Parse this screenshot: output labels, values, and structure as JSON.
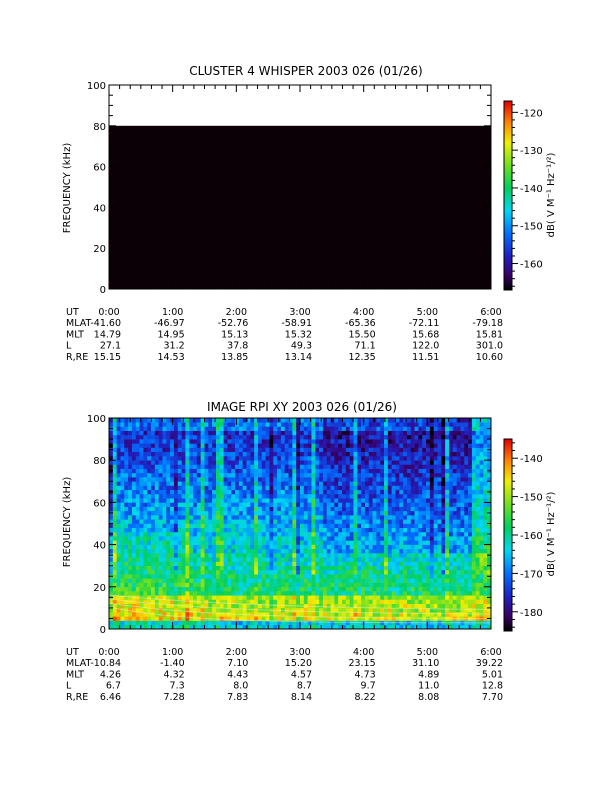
{
  "chart_data": [
    {
      "type": "heatmap",
      "title": "CLUSTER 4 WHISPER 2003 026 (01/26)",
      "ylabel": "FREQUENCY (kHz)",
      "ylim": [
        0,
        100
      ],
      "yticks": [
        "0",
        "20",
        "40",
        "60",
        "80",
        "100"
      ],
      "data_top_khz": 80,
      "fill_color": "#0a0005",
      "colorbar": {
        "label": "dB( V M⁻¹ Hz⁻¹/²)",
        "range": [
          -167,
          -117
        ],
        "ticks": [
          "-120",
          "-130",
          "-140",
          "-150",
          "-160"
        ],
        "tick_values": [
          -120,
          -130,
          -140,
          -150,
          -160
        ]
      },
      "ephemeris": {
        "labels": [
          "UT",
          "MLAT",
          "MLT",
          "L",
          "R,RE"
        ],
        "times": [
          "0:00",
          "1:00",
          "2:00",
          "3:00",
          "4:00",
          "5:00",
          "6:00"
        ],
        "rows": [
          [
            "-41.60",
            "-46.97",
            "-52.76",
            "-58.91",
            "-65.36",
            "-72.11",
            "-79.18"
          ],
          [
            "14.79",
            "14.95",
            "15.13",
            "15.32",
            "15.50",
            "15.68",
            "15.81"
          ],
          [
            "27.1",
            "31.2",
            "37.8",
            "49.3",
            "71.1",
            "122.0",
            "301.0"
          ],
          [
            "15.15",
            "14.53",
            "13.85",
            "13.14",
            "12.35",
            "11.51",
            "10.60"
          ]
        ]
      }
    },
    {
      "type": "heatmap",
      "title": "IMAGE RPI XY 2003 026 (01/26)",
      "ylabel": "FREQUENCY (kHz)",
      "ylim": [
        0,
        100
      ],
      "yticks": [
        "0",
        "20",
        "40",
        "60",
        "80",
        "100"
      ],
      "colorbar": {
        "label": "dB( V M⁻¹ Hz⁻¹/²)",
        "range": [
          -185,
          -135
        ],
        "ticks": [
          "-140",
          "-150",
          "-160",
          "-170",
          "-180"
        ],
        "tick_values": [
          -140,
          -150,
          -160,
          -170,
          -180
        ]
      },
      "ephemeris": {
        "labels": [
          "UT",
          "MLAT",
          "MLT",
          "L",
          "R,RE"
        ],
        "times": [
          "0:00",
          "1:00",
          "2:00",
          "3:00",
          "4:00",
          "5:00",
          "6:00"
        ],
        "rows": [
          [
            "-10.84",
            "-1.40",
            "7.10",
            "15.20",
            "23.15",
            "31.10",
            "39.22"
          ],
          [
            "4.26",
            "4.32",
            "4.43",
            "4.57",
            "4.73",
            "4.89",
            "5.01"
          ],
          [
            "6.7",
            "7.3",
            "8.0",
            "8.7",
            "9.7",
            "11.0",
            "12.8"
          ],
          [
            "6.46",
            "7.28",
            "7.83",
            "8.14",
            "8.22",
            "8.08",
            "7.70"
          ]
        ]
      }
    }
  ]
}
